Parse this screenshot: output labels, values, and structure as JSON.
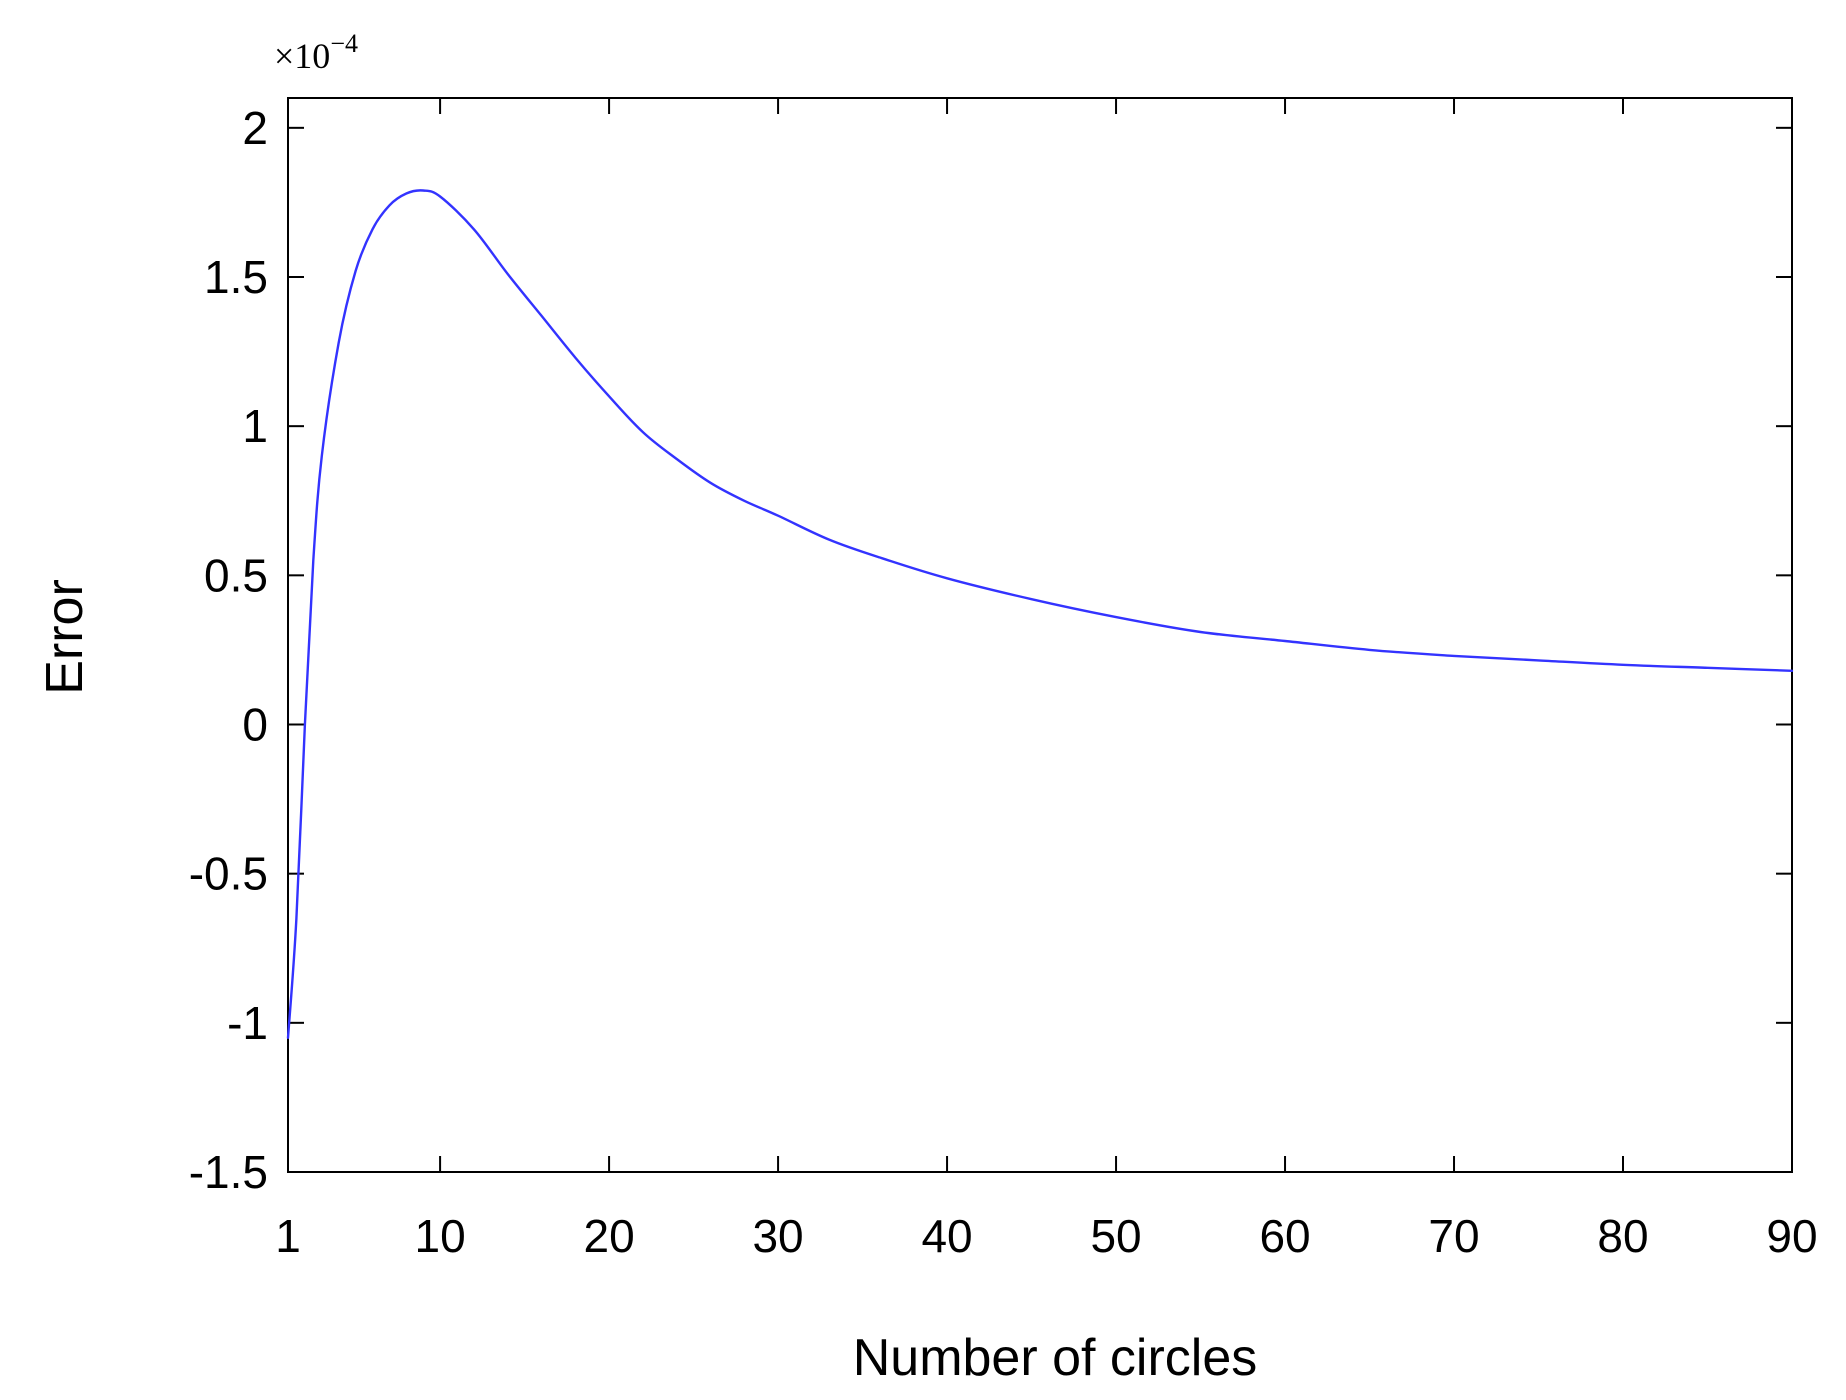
{
  "chart_data": {
    "type": "line",
    "title": "",
    "xlabel": "Number of circles",
    "ylabel": "Error",
    "y_multiplier": {
      "base": "×10",
      "exponent": "−4"
    },
    "xlim": [
      1,
      90
    ],
    "ylim": [
      -1.5,
      2.1
    ],
    "x_ticks": [
      1,
      10,
      20,
      30,
      40,
      50,
      60,
      70,
      80,
      90
    ],
    "x_tick_labels": [
      "1",
      "10",
      "20",
      "30",
      "40",
      "50",
      "60",
      "70",
      "80",
      "90"
    ],
    "y_ticks": [
      -1.5,
      -1,
      -0.5,
      0,
      0.5,
      1,
      1.5,
      2
    ],
    "y_tick_labels": [
      "-1.5",
      "-1",
      "-0.5",
      "0",
      "0.5",
      "1",
      "1.5",
      "2"
    ],
    "grid": false,
    "series": [
      {
        "color": "#3333ff",
        "x": [
          1,
          1.5,
          2,
          2.5,
          3,
          4,
          5,
          6,
          7,
          8,
          9,
          10,
          12,
          14,
          16,
          18,
          20,
          22,
          24,
          26,
          28,
          30,
          33,
          36,
          40,
          45,
          50,
          55,
          60,
          65,
          70,
          75,
          80,
          85,
          90
        ],
        "y": [
          -1.05,
          -0.65,
          0.0,
          0.55,
          0.9,
          1.28,
          1.52,
          1.66,
          1.74,
          1.78,
          1.79,
          1.77,
          1.66,
          1.51,
          1.37,
          1.23,
          1.1,
          0.98,
          0.89,
          0.81,
          0.75,
          0.7,
          0.62,
          0.56,
          0.49,
          0.42,
          0.36,
          0.31,
          0.28,
          0.25,
          0.23,
          0.215,
          0.2,
          0.19,
          0.18
        ]
      }
    ]
  }
}
